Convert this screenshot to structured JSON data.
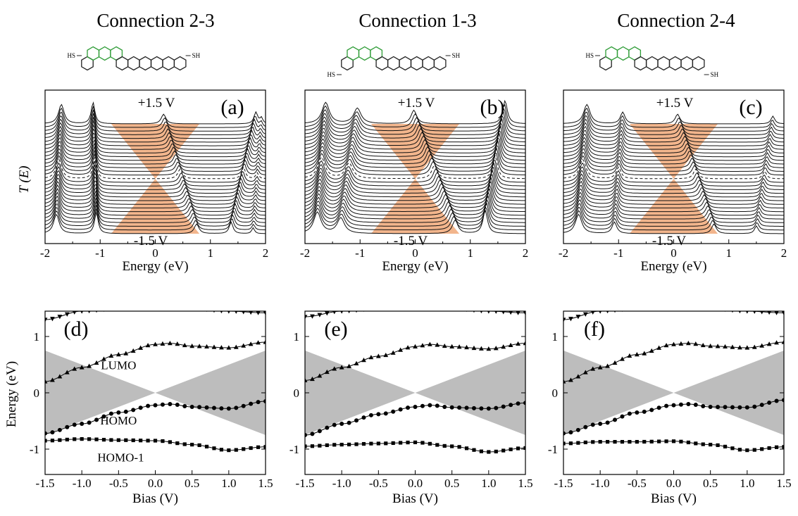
{
  "figure": {
    "columns": [
      {
        "title": "Connection 2-3",
        "molecule": {
          "left_SH": "HS",
          "right_SH": "SH",
          "left_pos": "top",
          "right_pos": "top"
        },
        "transmission": {
          "panel": "(a)",
          "top_bias": "+1.5 V",
          "bottom_bias": "-1.5 V",
          "ylabel": "T (E)",
          "xlabel": "Energy (eV)"
        },
        "levels": {
          "panel": "(d)",
          "xlabel": "Bias (V)",
          "ylabel": "Energy (eV)",
          "orbital_labels": [
            "LUMO",
            "HOMO",
            "HOMO-1"
          ]
        }
      },
      {
        "title": "Connection 1-3",
        "molecule": {
          "left_SH": "HS",
          "right_SH": "SH",
          "left_pos": "bottom",
          "right_pos": "top"
        },
        "transmission": {
          "panel": "(b)",
          "top_bias": "+1.5 V",
          "bottom_bias": "-1.5 V",
          "ylabel": "",
          "xlabel": "Energy (eV)"
        },
        "levels": {
          "panel": "(e)",
          "xlabel": "Bias (V)",
          "ylabel": "",
          "orbital_labels": []
        }
      },
      {
        "title": "Connection 2-4",
        "molecule": {
          "left_SH": "HS",
          "right_SH": "SH",
          "left_pos": "top",
          "right_pos": "bottom"
        },
        "transmission": {
          "panel": "(c)",
          "top_bias": "+1.5 V",
          "bottom_bias": "-1.5 V",
          "ylabel": "",
          "xlabel": "Energy (eV)"
        },
        "levels": {
          "panel": "(f)",
          "xlabel": "Bias (V)",
          "ylabel": "",
          "orbital_labels": []
        }
      }
    ]
  },
  "chart_data": [
    {
      "type": "line",
      "panel": "(a)",
      "title": "Connection 2-3",
      "xlabel": "Energy (eV)",
      "ylabel": "T (E)",
      "xlim": [
        -2,
        2
      ],
      "xticks": [
        -2,
        -1,
        0,
        1,
        2
      ],
      "bias_range": [
        -1.5,
        1.5
      ],
      "bias_window_fill": "#f0a878",
      "peaks": [
        {
          "e0": -1.75,
          "slope": 0.03,
          "h": 0.5,
          "w": 0.06
        },
        {
          "e0": -1.1,
          "slope": -0.02,
          "h": 0.55,
          "w": 0.04
        },
        {
          "e0": 0.45,
          "slope": -0.2,
          "h": 0.25,
          "w": 0.05
        },
        {
          "e0": 1.6,
          "slope": 0.15,
          "h": 0.3,
          "w": 0.04
        },
        {
          "e0": 1.85,
          "slope": 0.05,
          "h": 0.15,
          "w": 0.03
        }
      ]
    },
    {
      "type": "line",
      "panel": "(b)",
      "title": "Connection 1-3",
      "xlabel": "Energy (eV)",
      "ylabel": "",
      "xlim": [
        -2,
        2
      ],
      "xticks": [
        -2,
        -1,
        0,
        1,
        2
      ],
      "bias_range": [
        -1.5,
        1.5
      ],
      "bias_window_fill": "#f0a878",
      "peaks": [
        {
          "e0": -1.7,
          "slope": 0.05,
          "h": 0.55,
          "w": 0.08
        },
        {
          "e0": -1.2,
          "slope": 0.1,
          "h": 0.4,
          "w": 0.08
        },
        {
          "e0": 0.35,
          "slope": -0.25,
          "h": 0.35,
          "w": 0.06
        },
        {
          "e0": 1.45,
          "slope": 0.12,
          "h": 0.6,
          "w": 0.05
        }
      ]
    },
    {
      "type": "line",
      "panel": "(c)",
      "title": "Connection 2-4",
      "xlabel": "Energy (eV)",
      "ylabel": "",
      "xlim": [
        -2,
        2
      ],
      "xticks": [
        -2,
        -1,
        0,
        1,
        2
      ],
      "bias_range": [
        -1.5,
        1.5
      ],
      "bias_window_fill": "#f0a878",
      "peaks": [
        {
          "e0": -1.65,
          "slope": 0.05,
          "h": 0.5,
          "w": 0.07
        },
        {
          "e0": -1.0,
          "slope": 0.05,
          "h": 0.3,
          "w": 0.05
        },
        {
          "e0": 0.4,
          "slope": -0.22,
          "h": 0.25,
          "w": 0.05
        },
        {
          "e0": 1.65,
          "slope": 0.1,
          "h": 0.2,
          "w": 0.04
        }
      ]
    },
    {
      "type": "scatter",
      "panel": "(d)",
      "xlabel": "Bias (V)",
      "ylabel": "Energy (eV)",
      "xlim": [
        -1.5,
        1.5
      ],
      "ylim": [
        -1.45,
        1.45
      ],
      "xticks": [
        -1.5,
        -1.0,
        -0.5,
        0.0,
        0.5,
        1.0,
        1.5
      ],
      "yticks": [
        -1,
        0,
        1
      ],
      "bias_window_fill": "#bdbdbd",
      "series": [
        {
          "name": "HOMO-1",
          "marker": "square",
          "x": [
            -1.5,
            -1.0,
            -0.5,
            0.0,
            0.5,
            1.0,
            1.5
          ],
          "y": [
            -0.85,
            -0.82,
            -0.84,
            -0.85,
            -0.92,
            -1.02,
            -0.96
          ]
        },
        {
          "name": "HOMO",
          "marker": "circle",
          "x": [
            -1.5,
            -1.0,
            -0.5,
            0.0,
            0.2,
            0.5,
            1.0,
            1.5
          ],
          "y": [
            -0.72,
            -0.55,
            -0.35,
            -0.22,
            -0.2,
            -0.25,
            -0.28,
            -0.15
          ]
        },
        {
          "name": "LUMO",
          "marker": "triangle-up",
          "x": [
            -1.5,
            -1.0,
            -0.5,
            0.0,
            0.2,
            0.5,
            1.0,
            1.5
          ],
          "y": [
            0.2,
            0.45,
            0.68,
            0.86,
            0.88,
            0.83,
            0.8,
            0.9
          ]
        },
        {
          "name": "",
          "marker": "triangle-down",
          "x": [
            -1.5,
            -1.0,
            -0.5,
            0.0,
            0.5,
            1.0,
            1.5
          ],
          "y": [
            1.3,
            1.45,
            1.5,
            1.52,
            1.5,
            1.45,
            1.42
          ]
        }
      ]
    },
    {
      "type": "scatter",
      "panel": "(e)",
      "xlabel": "Bias (V)",
      "ylabel": "",
      "xlim": [
        -1.5,
        1.5
      ],
      "ylim": [
        -1.45,
        1.45
      ],
      "xticks": [
        -1.5,
        -1.0,
        -0.5,
        0.0,
        0.5,
        1.0,
        1.5
      ],
      "yticks": [
        -1,
        0,
        1
      ],
      "bias_window_fill": "#bdbdbd",
      "series": [
        {
          "name": "HOMO-1",
          "marker": "square",
          "x": [
            -1.5,
            -1.0,
            -0.5,
            0.0,
            0.5,
            1.0,
            1.5
          ],
          "y": [
            -0.95,
            -0.92,
            -0.9,
            -0.88,
            -0.95,
            -1.05,
            -0.98
          ]
        },
        {
          "name": "HOMO",
          "marker": "circle",
          "x": [
            -1.5,
            -1.0,
            -0.5,
            0.0,
            0.2,
            0.5,
            1.0,
            1.5
          ],
          "y": [
            -0.75,
            -0.55,
            -0.38,
            -0.25,
            -0.22,
            -0.26,
            -0.28,
            -0.18
          ]
        },
        {
          "name": "LUMO",
          "marker": "triangle-up",
          "x": [
            -1.5,
            -1.0,
            -0.5,
            0.0,
            0.2,
            0.5,
            1.0,
            1.5
          ],
          "y": [
            0.22,
            0.45,
            0.65,
            0.82,
            0.86,
            0.82,
            0.78,
            0.88
          ]
        },
        {
          "name": "",
          "marker": "triangle-down",
          "x": [
            -1.5,
            -1.0,
            -0.5,
            0.0,
            0.5,
            1.0,
            1.5
          ],
          "y": [
            1.35,
            1.45,
            1.5,
            1.52,
            1.5,
            1.45,
            1.42
          ]
        }
      ]
    },
    {
      "type": "scatter",
      "panel": "(f)",
      "xlabel": "Bias (V)",
      "ylabel": "",
      "xlim": [
        -1.5,
        1.5
      ],
      "ylim": [
        -1.45,
        1.45
      ],
      "xticks": [
        -1.5,
        -1.0,
        -0.5,
        0.0,
        0.5,
        1.0,
        1.5
      ],
      "yticks": [
        -1,
        0,
        1
      ],
      "bias_window_fill": "#bdbdbd",
      "series": [
        {
          "name": "HOMO-1",
          "marker": "square",
          "x": [
            -1.5,
            -1.0,
            -0.5,
            0.0,
            0.5,
            1.0,
            1.5
          ],
          "y": [
            -0.9,
            -0.87,
            -0.87,
            -0.86,
            -0.92,
            -1.02,
            -0.96
          ]
        },
        {
          "name": "HOMO",
          "marker": "circle",
          "x": [
            -1.5,
            -1.0,
            -0.5,
            0.0,
            0.2,
            0.5,
            1.0,
            1.5
          ],
          "y": [
            -0.72,
            -0.55,
            -0.35,
            -0.22,
            -0.2,
            -0.25,
            -0.26,
            -0.13
          ]
        },
        {
          "name": "LUMO",
          "marker": "triangle-up",
          "x": [
            -1.5,
            -1.0,
            -0.5,
            0.0,
            0.2,
            0.5,
            1.0,
            1.5
          ],
          "y": [
            0.2,
            0.45,
            0.68,
            0.86,
            0.88,
            0.83,
            0.8,
            0.9
          ]
        },
        {
          "name": "",
          "marker": "triangle-down",
          "x": [
            -1.5,
            -1.0,
            -0.5,
            0.0,
            0.5,
            1.0,
            1.5
          ],
          "y": [
            1.3,
            1.45,
            1.5,
            1.52,
            1.5,
            1.45,
            1.42
          ]
        }
      ]
    }
  ]
}
